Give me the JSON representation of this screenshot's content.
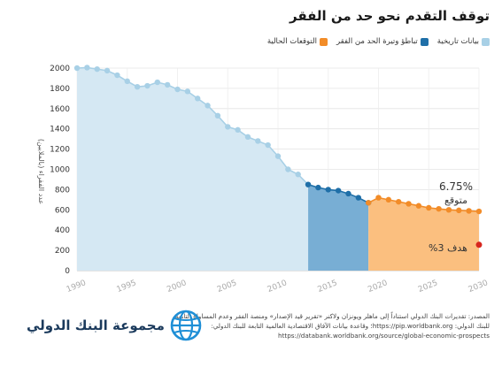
{
  "title": "توقف التقدم نحو حد من الفقر",
  "legend": [
    {
      "label": "بيانات تاريخية",
      "color": "#a8d0e6"
    },
    {
      "label": "تباطؤ وتيرة الحد من الفقر",
      "color": "#1f6fa8"
    },
    {
      "label": "التوقعات الحالية",
      "color": "#f28c28"
    }
  ],
  "source_text": "المصدر: تقديرات البنك الدولي استناداً إلى ماهلر ويونزان ولاكنر «تقرير قيد الإصدار» ومنصة الفقر وعدم المساواة التابعة للبنك الدولي: https://pip.worldbank.org؛ وقاعدة بيانات الآفاق الاقتصادية العالمية التابعة للبنك الدولي: https://databank.worldbank.org/source/global-economic-prospects",
  "logo_text": "مجموعة البنك الدولي",
  "colors": {
    "historical_fill": "#d5e8f3",
    "historical_line": "#a8d0e6",
    "slowdown_fill": "#78aed4",
    "slowdown_line": "#1f6fa8",
    "forecast_fill": "#fbbf7f",
    "forecast_line": "#f28c28",
    "target": "#d7261e"
  },
  "chart_data": {
    "type": "area",
    "ylabel": "عدد الفقراء (بالملايين)",
    "xlim": [
      1990,
      2030
    ],
    "ylim": [
      0,
      2000
    ],
    "x_ticks": [
      1990,
      1995,
      2000,
      2005,
      2010,
      2015,
      2020,
      2025,
      2030
    ],
    "y_ticks": [
      0,
      200,
      400,
      600,
      800,
      1000,
      1200,
      1400,
      1600,
      1800,
      2000
    ],
    "grid": true,
    "series": [
      {
        "name": "بيانات تاريخية",
        "x": [
          1990,
          1991,
          1992,
          1993,
          1994,
          1995,
          1996,
          1997,
          1998,
          1999,
          2000,
          2001,
          2002,
          2003,
          2004,
          2005,
          2006,
          2007,
          2008,
          2009,
          2010,
          2011,
          2012,
          2013
        ],
        "values": [
          2000,
          2005,
          1990,
          1975,
          1930,
          1870,
          1815,
          1825,
          1860,
          1835,
          1790,
          1770,
          1700,
          1630,
          1530,
          1420,
          1390,
          1320,
          1280,
          1240,
          1130,
          1000,
          950,
          850
        ]
      },
      {
        "name": "تباطؤ وتيرة الحد من الفقر",
        "x": [
          2013,
          2014,
          2015,
          2016,
          2017,
          2018,
          2019
        ],
        "values": [
          850,
          820,
          800,
          790,
          760,
          720,
          670
        ]
      },
      {
        "name": "التوقعات الحالية",
        "x": [
          2019,
          2020,
          2021,
          2022,
          2023,
          2024,
          2025,
          2026,
          2027,
          2028,
          2029,
          2030
        ],
        "values": [
          670,
          720,
          700,
          680,
          660,
          640,
          620,
          610,
          600,
          595,
          590,
          585
        ]
      }
    ],
    "annotations": [
      {
        "text": "6.75%",
        "x": 2029
      },
      {
        "text": "متوقع",
        "x": 2029
      },
      {
        "text": "هدف 3%",
        "x": 2029
      }
    ],
    "target_point": {
      "x": 2030,
      "y": 255
    }
  }
}
